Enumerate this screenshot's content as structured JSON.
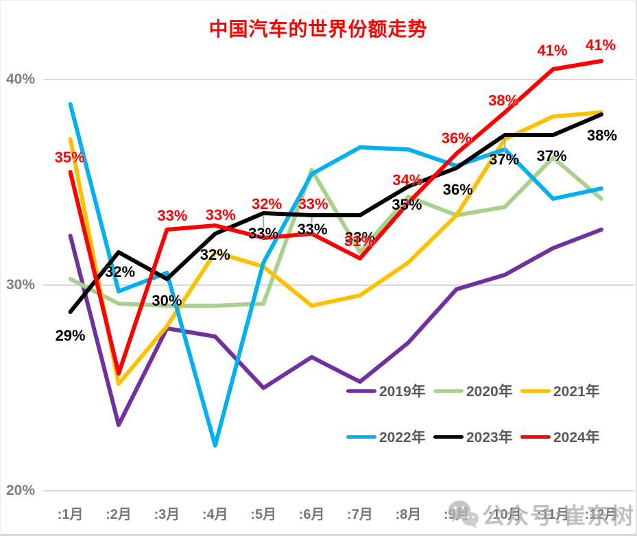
{
  "title": "中国汽车的世界份额走势",
  "watermark": {
    "icon": "wechat-icon",
    "text": "公众号:崔东树"
  },
  "chart_data": {
    "type": "line",
    "title": "中国汽车的世界份额走势",
    "categories": [
      ":1月",
      ":2月",
      ":3月",
      ":4月",
      ":5月",
      ":6月",
      ":7月",
      ":8月",
      ":9月",
      ":10月",
      ":11月",
      ":12月"
    ],
    "xlabel": "",
    "ylabel": "",
    "y_axis": {
      "tick_labels": [
        "40%",
        "30%",
        "20%"
      ],
      "tick_values": [
        40,
        30,
        20
      ],
      "range": [
        20,
        42
      ],
      "unit": "%"
    },
    "grid": "horizontal-only",
    "legend_position": "inside-bottom-right",
    "series": [
      {
        "name": "2019年",
        "color": "#7030A0",
        "values": [
          32.4,
          23.2,
          27.9,
          27.5,
          25.0,
          26.5,
          25.3,
          27.2,
          29.8,
          30.5,
          31.8,
          32.7
        ],
        "labels": [
          null,
          null,
          null,
          null,
          null,
          null,
          null,
          null,
          null,
          null,
          null,
          null
        ]
      },
      {
        "name": "2020年",
        "color": "#A9D18E",
        "values": [
          30.3,
          29.1,
          29.0,
          29.0,
          29.1,
          35.6,
          31.6,
          34.3,
          33.4,
          33.8,
          36.2,
          34.2
        ],
        "labels": [
          null,
          null,
          null,
          null,
          null,
          null,
          null,
          null,
          null,
          null,
          null,
          null
        ]
      },
      {
        "name": "2021年",
        "color": "#FFC000",
        "values": [
          37.1,
          25.2,
          28.0,
          31.6,
          30.9,
          29.0,
          29.5,
          31.1,
          33.4,
          37.1,
          38.2,
          38.4
        ],
        "labels": [
          null,
          null,
          null,
          null,
          null,
          null,
          null,
          null,
          null,
          null,
          null,
          null
        ]
      },
      {
        "name": "2022年",
        "color": "#00B0F0",
        "values": [
          38.8,
          29.7,
          30.6,
          22.2,
          31.1,
          35.4,
          36.7,
          36.6,
          35.8,
          36.6,
          34.2,
          34.7
        ],
        "labels": [
          null,
          null,
          null,
          null,
          null,
          null,
          null,
          null,
          null,
          null,
          null,
          null
        ]
      },
      {
        "name": "2023年",
        "color": "#000000",
        "values": [
          28.7,
          31.6,
          30.3,
          32.5,
          33.5,
          33.4,
          33.4,
          34.8,
          35.7,
          37.3,
          37.3,
          38.3
        ],
        "labels": [
          "29%",
          "32%",
          "30%",
          "32%",
          "33%",
          "33%",
          "33%",
          "35%",
          "36%",
          "37%",
          "37%",
          "38%"
        ]
      },
      {
        "name": "2024年",
        "color": "#FF0000",
        "values": [
          35.5,
          25.7,
          32.7,
          32.9,
          32.3,
          32.5,
          31.3,
          34.0,
          36.4,
          38.4,
          40.5,
          40.9
        ],
        "labels": [
          "35%",
          null,
          "33%",
          "33%",
          "32%",
          "33%",
          "31%",
          "34%",
          "36%",
          "38%",
          "41%",
          "41%"
        ]
      }
    ]
  }
}
